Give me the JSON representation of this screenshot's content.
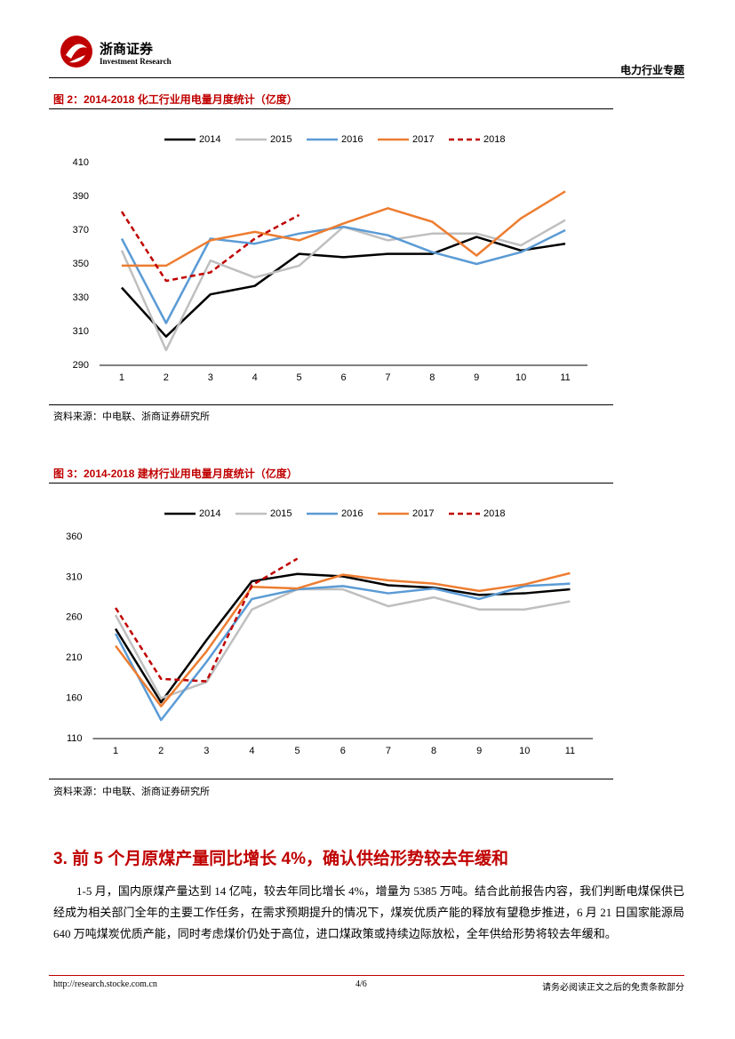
{
  "header": {
    "logo_text": "浙商证券",
    "logo_sub": "Investment Research",
    "report_type": "电力行业专题"
  },
  "chart_data": [
    {
      "type": "line",
      "title": "图 2：2014-2018 化工行业用电量月度统计（亿度）",
      "source": "资料来源：中电联、浙商证券研究所",
      "categories": [
        1,
        2,
        3,
        4,
        5,
        6,
        7,
        8,
        9,
        10,
        11
      ],
      "series": [
        {
          "name": "2014",
          "color": "#000000",
          "dashed": false,
          "values": [
            336,
            307,
            332,
            337,
            356,
            354,
            356,
            356,
            366,
            358,
            362
          ]
        },
        {
          "name": "2015",
          "color": "#bfbfbf",
          "dashed": false,
          "values": [
            358,
            299,
            352,
            342,
            349,
            372,
            364,
            368,
            368,
            361,
            376
          ]
        },
        {
          "name": "2016",
          "color": "#5b9bd5",
          "dashed": false,
          "values": [
            365,
            315,
            365,
            362,
            368,
            372,
            367,
            357,
            350,
            357,
            370
          ]
        },
        {
          "name": "2017",
          "color": "#ed7d31",
          "dashed": false,
          "values": [
            349,
            349,
            364,
            369,
            364,
            374,
            383,
            375,
            355,
            377,
            393
          ]
        },
        {
          "name": "2018",
          "color": "#c00000",
          "dashed": true,
          "values": [
            381,
            340,
            345,
            365,
            379,
            null,
            null,
            null,
            null,
            null,
            null
          ]
        }
      ],
      "ylim": [
        290,
        410
      ],
      "yticks": [
        290,
        310,
        330,
        350,
        370,
        390,
        410
      ],
      "legend": "top",
      "grid": false
    },
    {
      "type": "line",
      "title": "图 3：2014-2018 建材行业用电量月度统计（亿度）",
      "source": "资料来源：中电联、浙商证券研究所",
      "categories": [
        1,
        2,
        3,
        4,
        5,
        6,
        7,
        8,
        9,
        10,
        11
      ],
      "series": [
        {
          "name": "2014",
          "color": "#000000",
          "dashed": false,
          "values": [
            246,
            155,
            232,
            305,
            314,
            311,
            300,
            297,
            288,
            290,
            295
          ]
        },
        {
          "name": "2015",
          "color": "#bfbfbf",
          "dashed": false,
          "values": [
            263,
            160,
            180,
            270,
            295,
            295,
            274,
            285,
            270,
            270,
            280
          ]
        },
        {
          "name": "2016",
          "color": "#5b9bd5",
          "dashed": false,
          "values": [
            240,
            133,
            205,
            283,
            295,
            299,
            290,
            296,
            283,
            299,
            302
          ]
        },
        {
          "name": "2017",
          "color": "#ed7d31",
          "dashed": false,
          "values": [
            225,
            150,
            218,
            298,
            296,
            313,
            306,
            302,
            293,
            301,
            315
          ]
        },
        {
          "name": "2018",
          "color": "#c00000",
          "dashed": true,
          "values": [
            272,
            184,
            181,
            300,
            333,
            null,
            null,
            null,
            null,
            null,
            null
          ]
        }
      ],
      "ylim": [
        110,
        360
      ],
      "yticks": [
        110,
        160,
        210,
        260,
        310,
        360
      ],
      "legend": "top",
      "grid": false
    }
  ],
  "section": {
    "heading": "3. 前 5 个月原煤产量同比增长 4%，确认供给形势较去年缓和",
    "paragraph": "1-5 月，国内原煤产量达到 14 亿吨，较去年同比增长 4%，增量为 5385 万吨。结合此前报告内容，我们判断电煤保供已经成为相关部门全年的主要工作任务，在需求预期提升的情况下，煤炭优质产能的释放有望稳步推进，6 月 21 日国家能源局 640 万吨煤炭优质产能，同时考虑煤价仍处于高位，进口煤政策或持续边际放松，全年供给形势将较去年缓和。"
  },
  "footer": {
    "url": "http://research.stocke.com.cn",
    "page": "4/6",
    "disclaimer": "请务必阅读正文之后的免责条款部分"
  }
}
